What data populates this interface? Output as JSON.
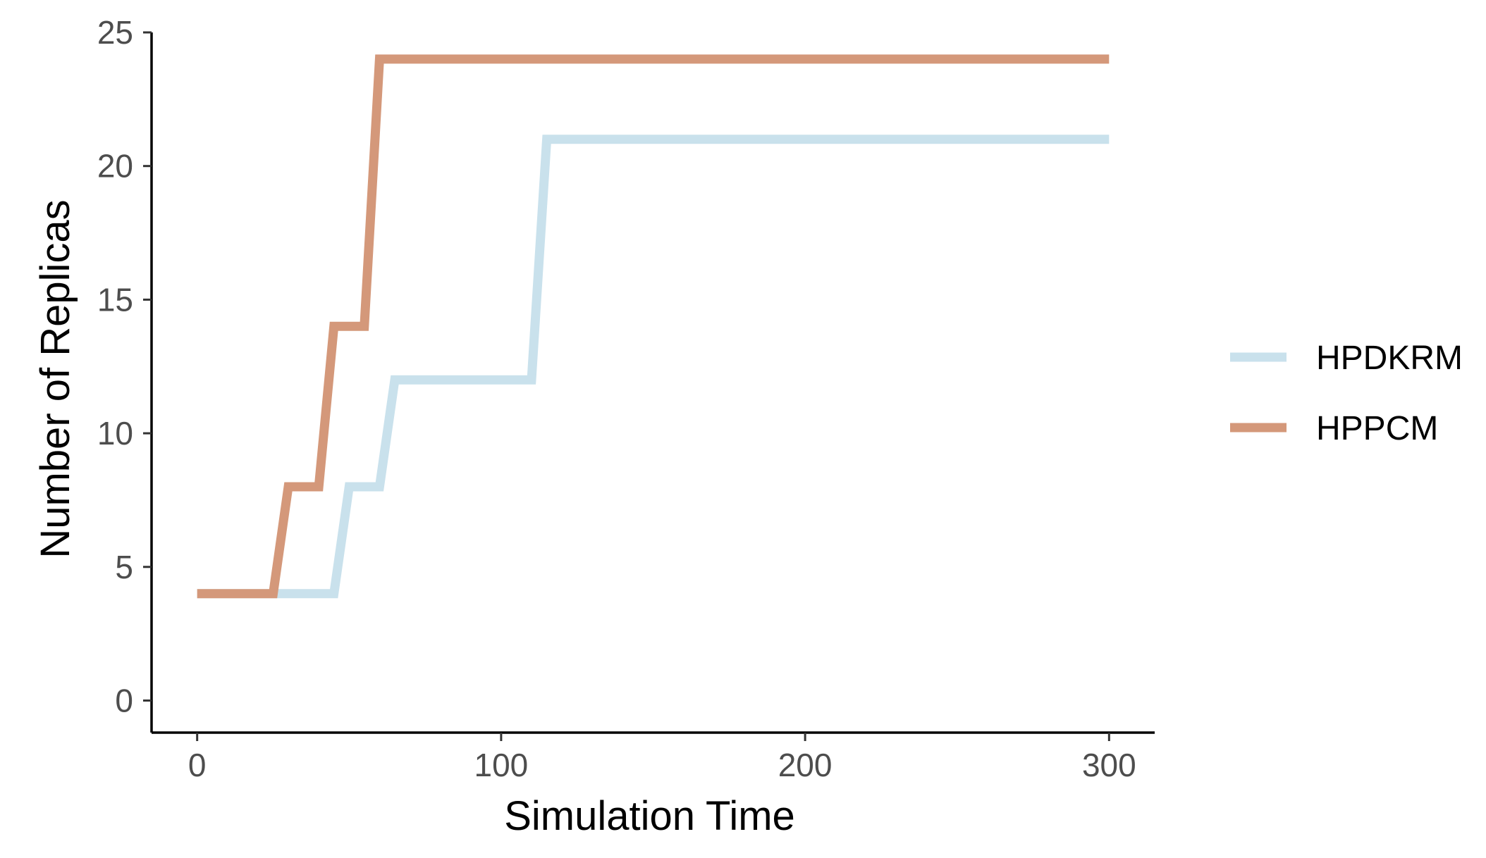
{
  "chart_data": {
    "type": "line",
    "title": "",
    "xlabel": "Simulation Time",
    "ylabel": "Number of Replicas",
    "xlim": [
      -15,
      315
    ],
    "ylim": [
      -1.2,
      25
    ],
    "x_ticks": [
      0,
      100,
      200,
      300
    ],
    "y_ticks": [
      0,
      5,
      10,
      15,
      20,
      25
    ],
    "grid": false,
    "legend_position": "right",
    "series": [
      {
        "name": "HPDKRM",
        "color": "#c9e1ec",
        "points": [
          [
            0,
            4
          ],
          [
            45,
            4
          ],
          [
            50,
            8
          ],
          [
            60,
            8
          ],
          [
            65,
            12
          ],
          [
            110,
            12
          ],
          [
            115,
            21
          ],
          [
            300,
            21
          ]
        ]
      },
      {
        "name": "HPPCM",
        "color": "#d4987a",
        "points": [
          [
            0,
            4
          ],
          [
            25,
            4
          ],
          [
            30,
            8
          ],
          [
            40,
            8
          ],
          [
            45,
            14
          ],
          [
            55,
            14
          ],
          [
            60,
            24
          ],
          [
            300,
            24
          ]
        ]
      }
    ]
  }
}
